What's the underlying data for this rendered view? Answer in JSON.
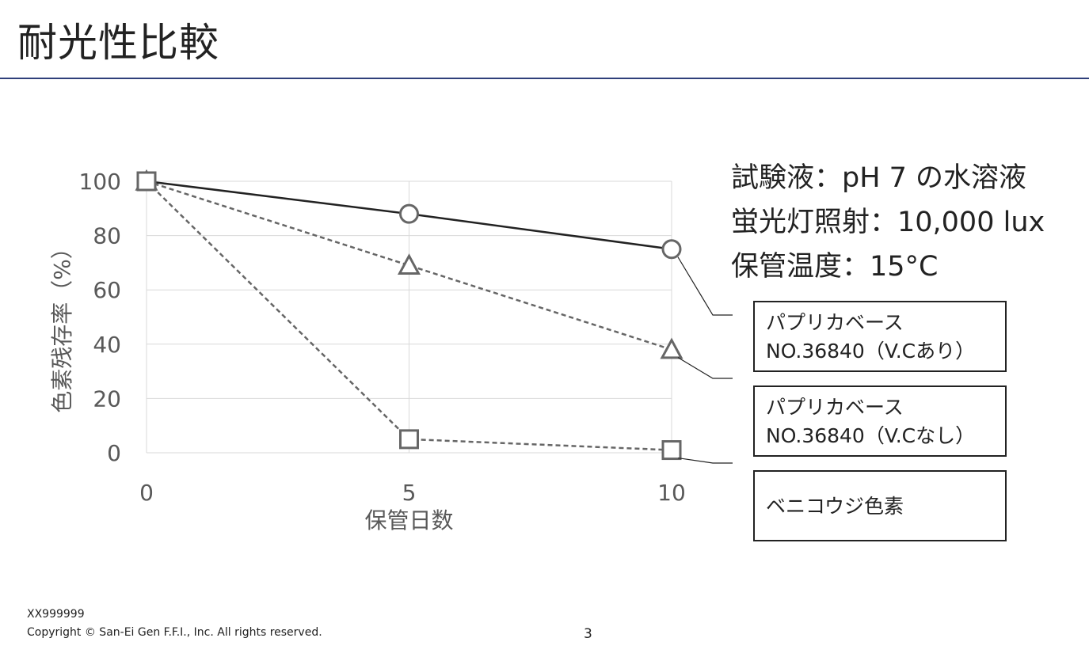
{
  "title": "耐光性比較",
  "conditions": [
    "試験液：pH 7 の水溶液",
    "蛍光灯照射：10,000 lux",
    "保管温度：15°C"
  ],
  "chart_data": {
    "type": "line",
    "x": [
      0,
      5,
      10
    ],
    "xlabel": "保管日数",
    "ylabel": "色素残存率（%）",
    "xlim": [
      0,
      10
    ],
    "ylim": [
      0,
      100
    ],
    "x_ticks": [
      "0",
      "5",
      "10"
    ],
    "y_ticks": [
      "0",
      "20",
      "40",
      "60",
      "80",
      "100"
    ],
    "grid": true,
    "series": [
      {
        "name": "パプリカベース NO.36840（V.Cあり）",
        "label_lines": [
          "パプリカベース",
          "NO.36840（V.Cあり）"
        ],
        "values": [
          100,
          88,
          75
        ],
        "marker": "circle",
        "line": "solid",
        "color": "#222222"
      },
      {
        "name": "パプリカベース NO.36840（V.Cなし）",
        "label_lines": [
          "パプリカベース",
          "NO.36840（V.Cなし）"
        ],
        "values": [
          100,
          69,
          38
        ],
        "marker": "triangle",
        "line": "dashed",
        "color": "#666666"
      },
      {
        "name": "ベニコウジ色素",
        "label_lines": [
          "ベニコウジ色素"
        ],
        "values": [
          100,
          5,
          1
        ],
        "marker": "square",
        "line": "dashed",
        "color": "#666666"
      }
    ]
  },
  "footer": {
    "code": "XX999999",
    "copyright": "Copyright © San-Ei Gen F.F.I., Inc. All rights reserved.",
    "page": "3"
  }
}
